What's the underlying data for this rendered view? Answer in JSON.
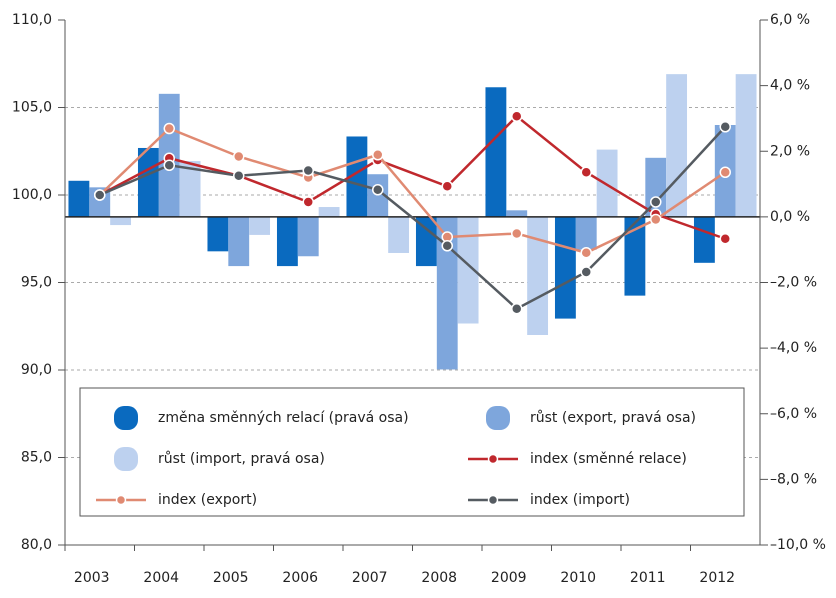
{
  "chart_data": {
    "type": "bar",
    "categories": [
      "2003",
      "2004",
      "2005",
      "2006",
      "2007",
      "2008",
      "2009",
      "2010",
      "2011",
      "2012"
    ],
    "series": [
      {
        "name": "změna směnných relací (pravá osa)",
        "type": "bar",
        "axis": "y2",
        "color": "#0a6abf",
        "values": [
          1.1,
          2.1,
          -1.05,
          -1.5,
          2.45,
          -1.5,
          3.95,
          -3.1,
          -2.4,
          -1.4
        ]
      },
      {
        "name": "růst (export, pravá osa)",
        "type": "bar",
        "axis": "y2",
        "color": "#7ea6dc",
        "values": [
          0.9,
          3.75,
          -1.5,
          -1.2,
          1.3,
          -4.65,
          0.2,
          -1.0,
          1.8,
          2.8
        ]
      },
      {
        "name": "růst (import, pravá osa)",
        "type": "bar",
        "axis": "y2",
        "color": "#bdd1ef",
        "values": [
          -0.25,
          1.7,
          -0.55,
          0.3,
          -1.1,
          -3.25,
          -3.6,
          2.05,
          4.35,
          4.35
        ]
      },
      {
        "name": "index (směnné relace)",
        "type": "line",
        "color": "#c0282d",
        "values": [
          100.0,
          102.1,
          101.1,
          99.6,
          102.0,
          100.5,
          104.5,
          101.3,
          98.9,
          97.5
        ]
      },
      {
        "name": "index (export)",
        "type": "line",
        "color": "#e08a72",
        "values": [
          100.0,
          103.8,
          102.2,
          101.0,
          102.3,
          97.6,
          97.8,
          96.7,
          98.6,
          101.3
        ]
      },
      {
        "name": "index (import)",
        "type": "line",
        "color": "#555b61",
        "values": [
          100.0,
          101.7,
          101.1,
          101.4,
          100.3,
          97.1,
          93.5,
          95.6,
          99.6,
          103.9
        ]
      }
    ],
    "ylim": [
      80,
      110
    ],
    "yticks": [
      {
        "value": 80,
        "label": "80,0"
      },
      {
        "value": 85,
        "label": "85,0"
      },
      {
        "value": 90,
        "label": "90,0"
      },
      {
        "value": 95,
        "label": "95,0"
      },
      {
        "value": 100,
        "label": "100,0"
      },
      {
        "value": 105,
        "label": "105,0"
      },
      {
        "value": 110,
        "label": "110,0"
      }
    ],
    "y2lim": [
      -10,
      6
    ],
    "y2ticks": [
      {
        "value": -10,
        "label": "–10,0 %"
      },
      {
        "value": -8,
        "label": "–8,0 %"
      },
      {
        "value": -6,
        "label": "–6,0 %"
      },
      {
        "value": -4,
        "label": "–4,0 %"
      },
      {
        "value": -2,
        "label": "–2,0 %"
      },
      {
        "value": 0,
        "label": "0,0 %"
      },
      {
        "value": 2,
        "label": "2,0 %"
      },
      {
        "value": 4,
        "label": "4,0 %"
      },
      {
        "value": 6,
        "label": "6,0 %"
      }
    ],
    "grid": true,
    "legend": "bottom"
  }
}
